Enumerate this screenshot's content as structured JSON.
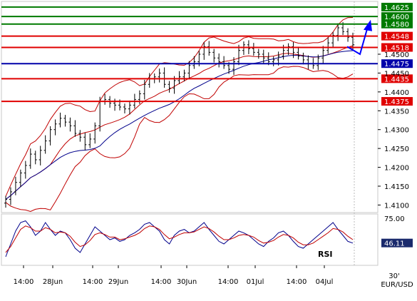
{
  "chart_data": [
    {
      "type": "candlestick",
      "instrument": "EUR/USD",
      "timeframe": "30'",
      "ylim": [
        1.408,
        1.464
      ],
      "ytick_labels": [
        "1.4100",
        "1.4150",
        "1.4200",
        "1.4250",
        "1.4300",
        "1.4350",
        "1.4400",
        "1.4450",
        "1.4500"
      ],
      "xtick_labels": [
        "14:00",
        "28Jun",
        "14:00",
        "29Jun",
        "14:00",
        "30Jun",
        "14:00",
        "01Jul",
        "14:00",
        "04Jul"
      ],
      "series": [
        {
          "kind": "ohlc",
          "color": "#000000",
          "close": [
            1.4115,
            1.4135,
            1.416,
            1.4185,
            1.4205,
            1.4235,
            1.422,
            1.4245,
            1.427,
            1.43,
            1.4315,
            1.433,
            1.432,
            1.431,
            1.429,
            1.428,
            1.426,
            1.4275,
            1.431,
            1.4375,
            1.438,
            1.437,
            1.4365,
            1.436,
            1.4355,
            1.4365,
            1.438,
            1.4395,
            1.442,
            1.4435,
            1.444,
            1.445,
            1.442,
            1.441,
            1.443,
            1.444,
            1.445,
            1.447,
            1.448,
            1.45,
            1.452,
            1.4505,
            1.449,
            1.448,
            1.447,
            1.446,
            1.448,
            1.451,
            1.4525,
            1.4515,
            1.4505,
            1.45,
            1.449,
            1.448,
            1.4485,
            1.4495,
            1.451,
            1.452,
            1.4505,
            1.4495,
            1.4485,
            1.4475,
            1.447,
            1.449,
            1.451,
            1.453,
            1.455,
            1.457,
            1.456,
            1.4545,
            1.4525
          ]
        },
        {
          "kind": "moving-average",
          "color": "#00008b"
        },
        {
          "kind": "bollinger-bands",
          "color": "#c00000"
        }
      ],
      "levels": [
        {
          "value": 1.4625,
          "label": "1.4625",
          "color": "#007a00"
        },
        {
          "value": 1.46,
          "label": "1.4600",
          "color": "#007a00"
        },
        {
          "value": 1.458,
          "label": "1.4580",
          "color": "#007a00"
        },
        {
          "value": 1.4548,
          "label": "1.4548",
          "color": "#e00000"
        },
        {
          "value": 1.4518,
          "label": "1.4518",
          "color": "#e00000"
        },
        {
          "value": 1.4475,
          "label": "1.4475",
          "color": "#0000aa"
        },
        {
          "value": 1.4435,
          "label": "1.4435",
          "color": "#e00000"
        },
        {
          "value": 1.4375,
          "label": "1.4375",
          "color": "#e00000"
        }
      ],
      "forecast_arrow": {
        "color": "#0000ff",
        "path": [
          1.452,
          1.45,
          1.458
        ]
      }
    },
    {
      "type": "line",
      "label": "RSI",
      "ylim": [
        20,
        80
      ],
      "ytick_labels": [
        "75.00"
      ],
      "current_value": 46.11,
      "current_label": "46.11",
      "series": [
        {
          "kind": "rsi",
          "color": "#00008b",
          "values": [
            30,
            45,
            60,
            70,
            72,
            65,
            55,
            60,
            70,
            62,
            55,
            60,
            58,
            50,
            40,
            35,
            45,
            55,
            65,
            60,
            55,
            50,
            52,
            48,
            50,
            55,
            58,
            62,
            68,
            70,
            65,
            60,
            50,
            45,
            55,
            60,
            62,
            58,
            60,
            65,
            70,
            62,
            55,
            48,
            45,
            50,
            55,
            60,
            58,
            55,
            50,
            45,
            42,
            48,
            52,
            58,
            60,
            55,
            48,
            42,
            40,
            45,
            50,
            55,
            60,
            65,
            70,
            62,
            55,
            48,
            46
          ]
        },
        {
          "kind": "rsi-signal",
          "color": "#c00000",
          "values": [
            35,
            42,
            52,
            62,
            66,
            64,
            60,
            60,
            64,
            62,
            58,
            59,
            58,
            54,
            47,
            42,
            44,
            49,
            56,
            58,
            56,
            53,
            53,
            50,
            51,
            53,
            55,
            58,
            63,
            66,
            65,
            62,
            56,
            51,
            53,
            56,
            58,
            58,
            59,
            62,
            65,
            63,
            59,
            54,
            50,
            50,
            52,
            55,
            56,
            55,
            53,
            49,
            46,
            47,
            49,
            53,
            56,
            55,
            52,
            47,
            44,
            44,
            46,
            50,
            54,
            58,
            63,
            62,
            59,
            54,
            50
          ]
        }
      ]
    }
  ]
}
